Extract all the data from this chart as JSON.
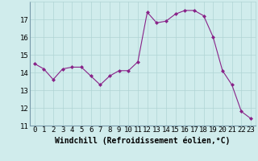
{
  "x": [
    0,
    1,
    2,
    3,
    4,
    5,
    6,
    7,
    8,
    9,
    10,
    11,
    12,
    13,
    14,
    15,
    16,
    17,
    18,
    19,
    20,
    21,
    22,
    23
  ],
  "y": [
    14.5,
    14.2,
    13.6,
    14.2,
    14.3,
    14.3,
    13.8,
    13.3,
    13.8,
    14.1,
    14.1,
    14.6,
    17.4,
    16.8,
    16.9,
    17.3,
    17.5,
    17.5,
    17.2,
    16.0,
    14.1,
    13.3,
    11.8,
    11.4
  ],
  "line_color": "#882288",
  "marker": "D",
  "marker_size": 2.0,
  "bg_color": "#d0ecec",
  "grid_color": "#b0d4d4",
  "xlabel": "Windchill (Refroidissement éolien,°C)",
  "xlim": [
    -0.5,
    23.5
  ],
  "ylim": [
    11,
    18
  ],
  "yticks": [
    11,
    12,
    13,
    14,
    15,
    16,
    17
  ],
  "xticks": [
    0,
    1,
    2,
    3,
    4,
    5,
    6,
    7,
    8,
    9,
    10,
    11,
    12,
    13,
    14,
    15,
    16,
    17,
    18,
    19,
    20,
    21,
    22,
    23
  ],
  "xlabel_fontsize": 7.0,
  "tick_fontsize": 6.5,
  "line_width": 0.8
}
